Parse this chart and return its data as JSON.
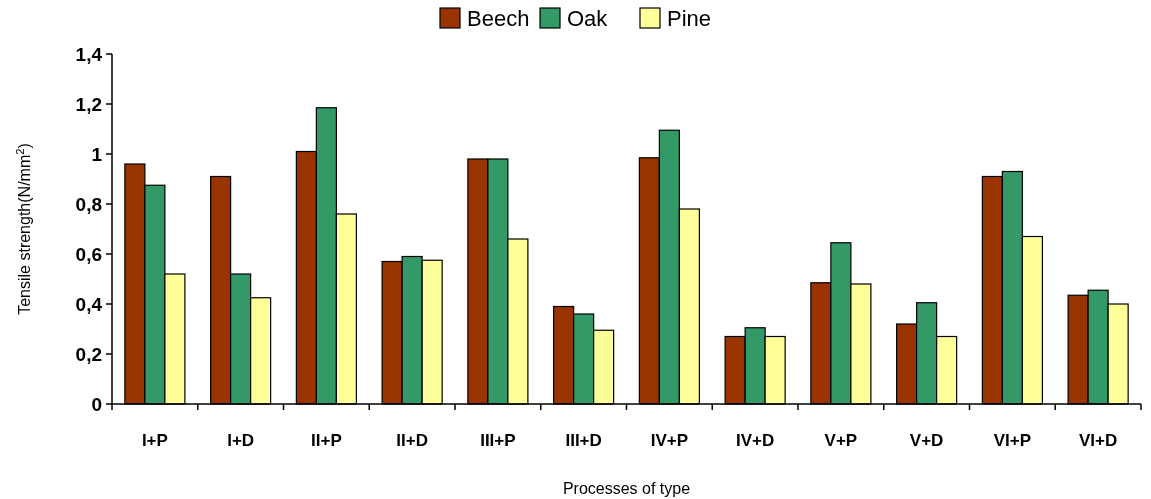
{
  "chart_data": {
    "type": "bar",
    "xlabel": "Processes of  type",
    "ylabel": "Tensile strength(N/mm$^{2}$)",
    "categories": [
      "I+P",
      "I+D",
      "II+P",
      "II+D",
      "III+P",
      "III+D",
      "IV+P",
      "IV+D",
      "V+P",
      "V+D",
      "VI+P",
      "VI+D"
    ],
    "series": [
      {
        "name": "Beech",
        "color": "#993300",
        "values": [
          0.96,
          0.91,
          1.01,
          0.57,
          0.98,
          0.39,
          0.985,
          0.27,
          0.485,
          0.32,
          0.91,
          0.435
        ]
      },
      {
        "name": "Oak",
        "color": "#339966",
        "values": [
          0.875,
          0.52,
          1.185,
          0.59,
          0.98,
          0.36,
          1.095,
          0.305,
          0.645,
          0.405,
          0.93,
          0.455
        ]
      },
      {
        "name": "Pine",
        "color": "#ffff99",
        "values": [
          0.52,
          0.425,
          0.76,
          0.575,
          0.66,
          0.295,
          0.78,
          0.27,
          0.48,
          0.27,
          0.67,
          0.4
        ]
      }
    ],
    "ylim": [
      0,
      1.4
    ],
    "yticks": [
      0,
      {
        "value": 0.2,
        "label": "0,2"
      },
      {
        "value": 0.4,
        "label": "0,4"
      },
      {
        "value": 0.6,
        "label": "0,6"
      },
      {
        "value": 0.8,
        "label": "0,8"
      },
      1,
      {
        "value": 1.2,
        "label": "1,2"
      },
      {
        "value": 1.4,
        "label": "1,4"
      }
    ],
    "legend": "top",
    "grid": false
  }
}
